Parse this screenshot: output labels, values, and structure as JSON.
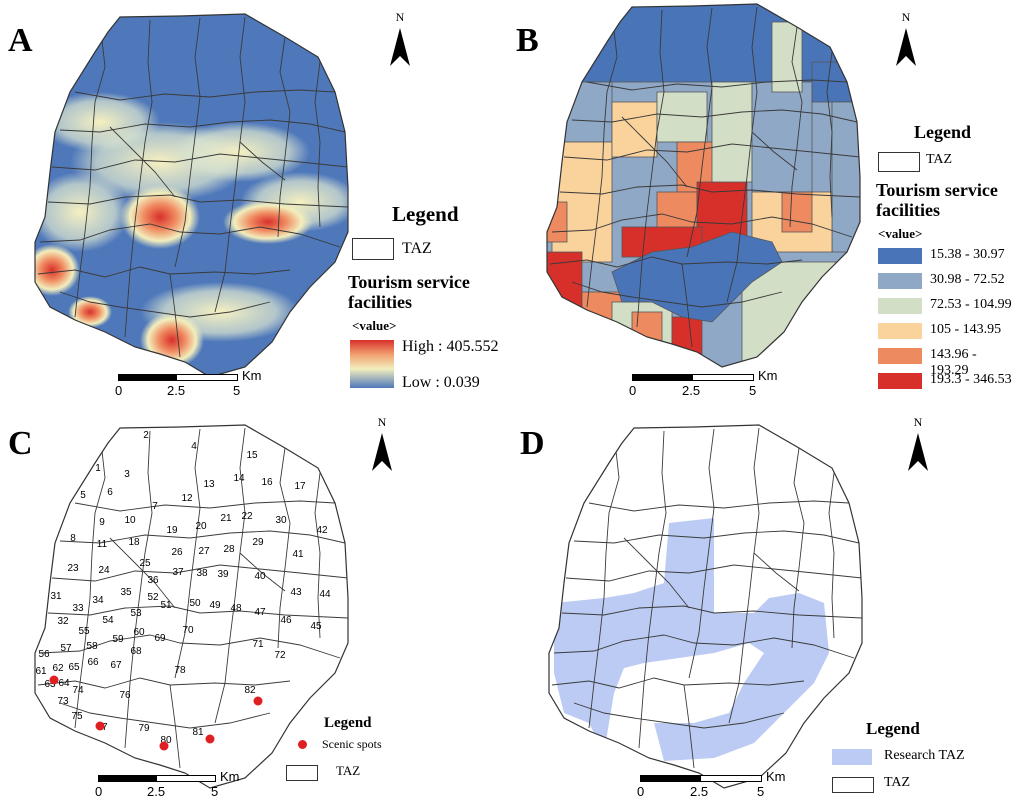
{
  "panels": {
    "a": {
      "label": "A",
      "north": "N",
      "legend": {
        "title": "Legend",
        "taz": "TAZ",
        "layer": "Tourism service facilities",
        "value": "<value>",
        "high": "High : 405.552",
        "low": "Low : 0.039"
      },
      "scale": {
        "unit": "Km",
        "ticks": [
          "0",
          "2.5",
          "5"
        ]
      }
    },
    "b": {
      "label": "B",
      "north": "N",
      "legend": {
        "title": "Legend",
        "taz": "TAZ",
        "layer": "Tourism service facilities",
        "value": "<value>",
        "classes": [
          {
            "label": "15.38 - 30.97",
            "color": "#4a74b8"
          },
          {
            "label": "30.98 - 72.52",
            "color": "#8fa8c6"
          },
          {
            "label": "72.53 - 104.99",
            "color": "#d3dec6"
          },
          {
            "label": "105 - 143.95",
            "color": "#f9d29c"
          },
          {
            "label": "143.96 - 193.29",
            "color": "#ee8a60"
          },
          {
            "label": "193.3 - 346.53",
            "color": "#d7302b"
          }
        ]
      },
      "scale": {
        "unit": "Km",
        "ticks": [
          "0",
          "2.5",
          "5"
        ]
      }
    },
    "c": {
      "label": "C",
      "north": "N",
      "legend": {
        "title": "Legend",
        "spots": "Scenic spots",
        "taz": "TAZ"
      },
      "zone_ids": [
        "1",
        "2",
        "3",
        "4",
        "5",
        "6",
        "7",
        "8",
        "9",
        "10",
        "11",
        "12",
        "13",
        "14",
        "15",
        "16",
        "17",
        "18",
        "19",
        "20",
        "21",
        "22",
        "23",
        "24",
        "25",
        "26",
        "27",
        "28",
        "29",
        "30",
        "31",
        "32",
        "33",
        "34",
        "35",
        "36",
        "37",
        "38",
        "39",
        "40",
        "41",
        "42",
        "43",
        "44",
        "45",
        "46",
        "47",
        "48",
        "49",
        "50",
        "51",
        "52",
        "53",
        "54",
        "55",
        "56",
        "57",
        "58",
        "59",
        "60",
        "61",
        "62",
        "63",
        "64",
        "65",
        "66",
        "67",
        "68",
        "69",
        "70",
        "71",
        "72",
        "73",
        "74",
        "75",
        "76",
        "77",
        "78",
        "79",
        "80",
        "81",
        "82"
      ],
      "scale": {
        "unit": "Km",
        "ticks": [
          "0",
          "2.5",
          "5"
        ]
      }
    },
    "d": {
      "label": "D",
      "north": "N",
      "legend": {
        "title": "Legend",
        "research": "Research TAZ",
        "taz": "TAZ"
      },
      "research_color": "#bccbf3",
      "scale": {
        "unit": "Km",
        "ticks": [
          "0",
          "2.5",
          "5"
        ]
      }
    }
  },
  "colors": {
    "spot": "#e02020",
    "boundary": "#333333"
  }
}
